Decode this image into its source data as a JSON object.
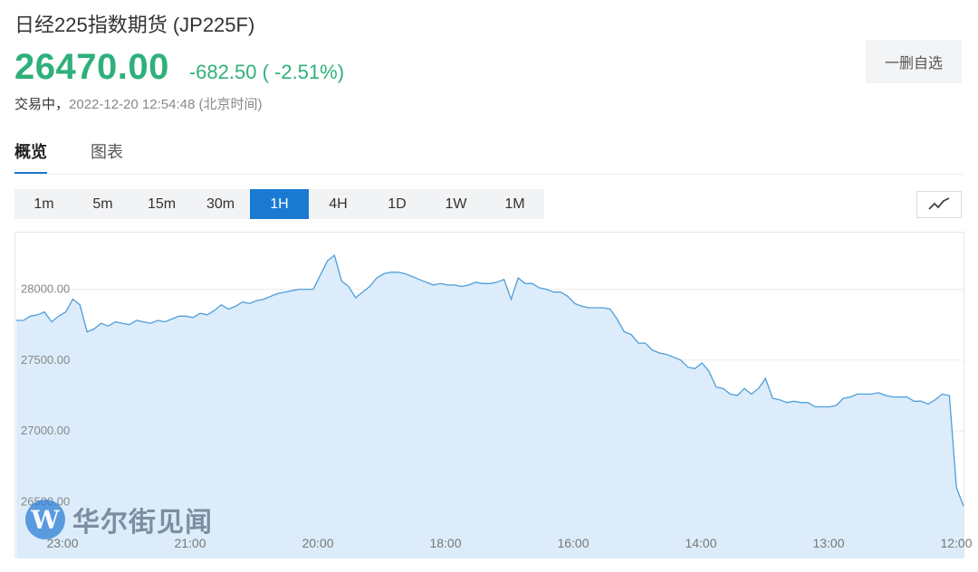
{
  "header": {
    "title": "日经225指数期货 (JP225F)",
    "price": "26470.00",
    "change": "-682.50 ( -2.51%)",
    "status": "交易中，",
    "timestamp": "2022-12-20 12:54:48 (北京时间)",
    "watch_button": "一删自选"
  },
  "tabs": [
    "概览",
    "图表"
  ],
  "periods": [
    "1m",
    "5m",
    "15m",
    "30m",
    "1H",
    "4H",
    "1D",
    "1W",
    "1M"
  ],
  "selected_period": "1H",
  "colors": {
    "accent": "#1a7ad1",
    "price": "#2fb07b",
    "line": "#4f9ed8",
    "fill": "#dcecfb"
  },
  "icons": {
    "chart_toggle": "line-chart-icon",
    "watermark_logo": "wallstreetcn-logo"
  },
  "watermark": {
    "logo_letter": "W",
    "text": "华尔街见闻"
  },
  "chart_data": {
    "type": "area",
    "ylim": [
      26100,
      28400
    ],
    "yticks": [
      {
        "value": 28000,
        "label": "28000.00"
      },
      {
        "value": 27500,
        "label": "27500.00"
      },
      {
        "value": 27000,
        "label": "27000.00"
      },
      {
        "value": 26500,
        "label": "26500.00"
      }
    ],
    "xticks": [
      "23:00",
      "21:00",
      "20:00",
      "18:00",
      "16:00",
      "14:00",
      "13:00",
      "12:00"
    ],
    "grid": true,
    "values": [
      27780,
      27780,
      27810,
      27820,
      27840,
      27770,
      27810,
      27840,
      27930,
      27890,
      27700,
      27720,
      27760,
      27740,
      27770,
      27760,
      27750,
      27780,
      27770,
      27760,
      27780,
      27770,
      27790,
      27810,
      27810,
      27800,
      27830,
      27820,
      27850,
      27890,
      27860,
      27880,
      27910,
      27900,
      27920,
      27930,
      27950,
      27970,
      27980,
      27990,
      28000,
      28000,
      28000,
      28100,
      28200,
      28240,
      28060,
      28020,
      27940,
      27980,
      28020,
      28080,
      28110,
      28120,
      28120,
      28110,
      28090,
      28070,
      28050,
      28030,
      28040,
      28030,
      28030,
      28020,
      28030,
      28050,
      28040,
      28040,
      28050,
      28070,
      27930,
      28080,
      28040,
      28040,
      28010,
      28000,
      27980,
      27980,
      27950,
      27900,
      27880,
      27870,
      27870,
      27870,
      27860,
      27790,
      27700,
      27680,
      27620,
      27620,
      27570,
      27550,
      27540,
      27520,
      27500,
      27450,
      27440,
      27480,
      27420,
      27310,
      27300,
      27260,
      27250,
      27300,
      27260,
      27300,
      27370,
      27230,
      27220,
      27200,
      27210,
      27200,
      27200,
      27170,
      27170,
      27170,
      27180,
      27230,
      27240,
      27260,
      27260,
      27260,
      27270,
      27250,
      27240,
      27240,
      27240,
      27210,
      27210,
      27190,
      27220,
      27260,
      27250,
      26600,
      26470
    ]
  }
}
